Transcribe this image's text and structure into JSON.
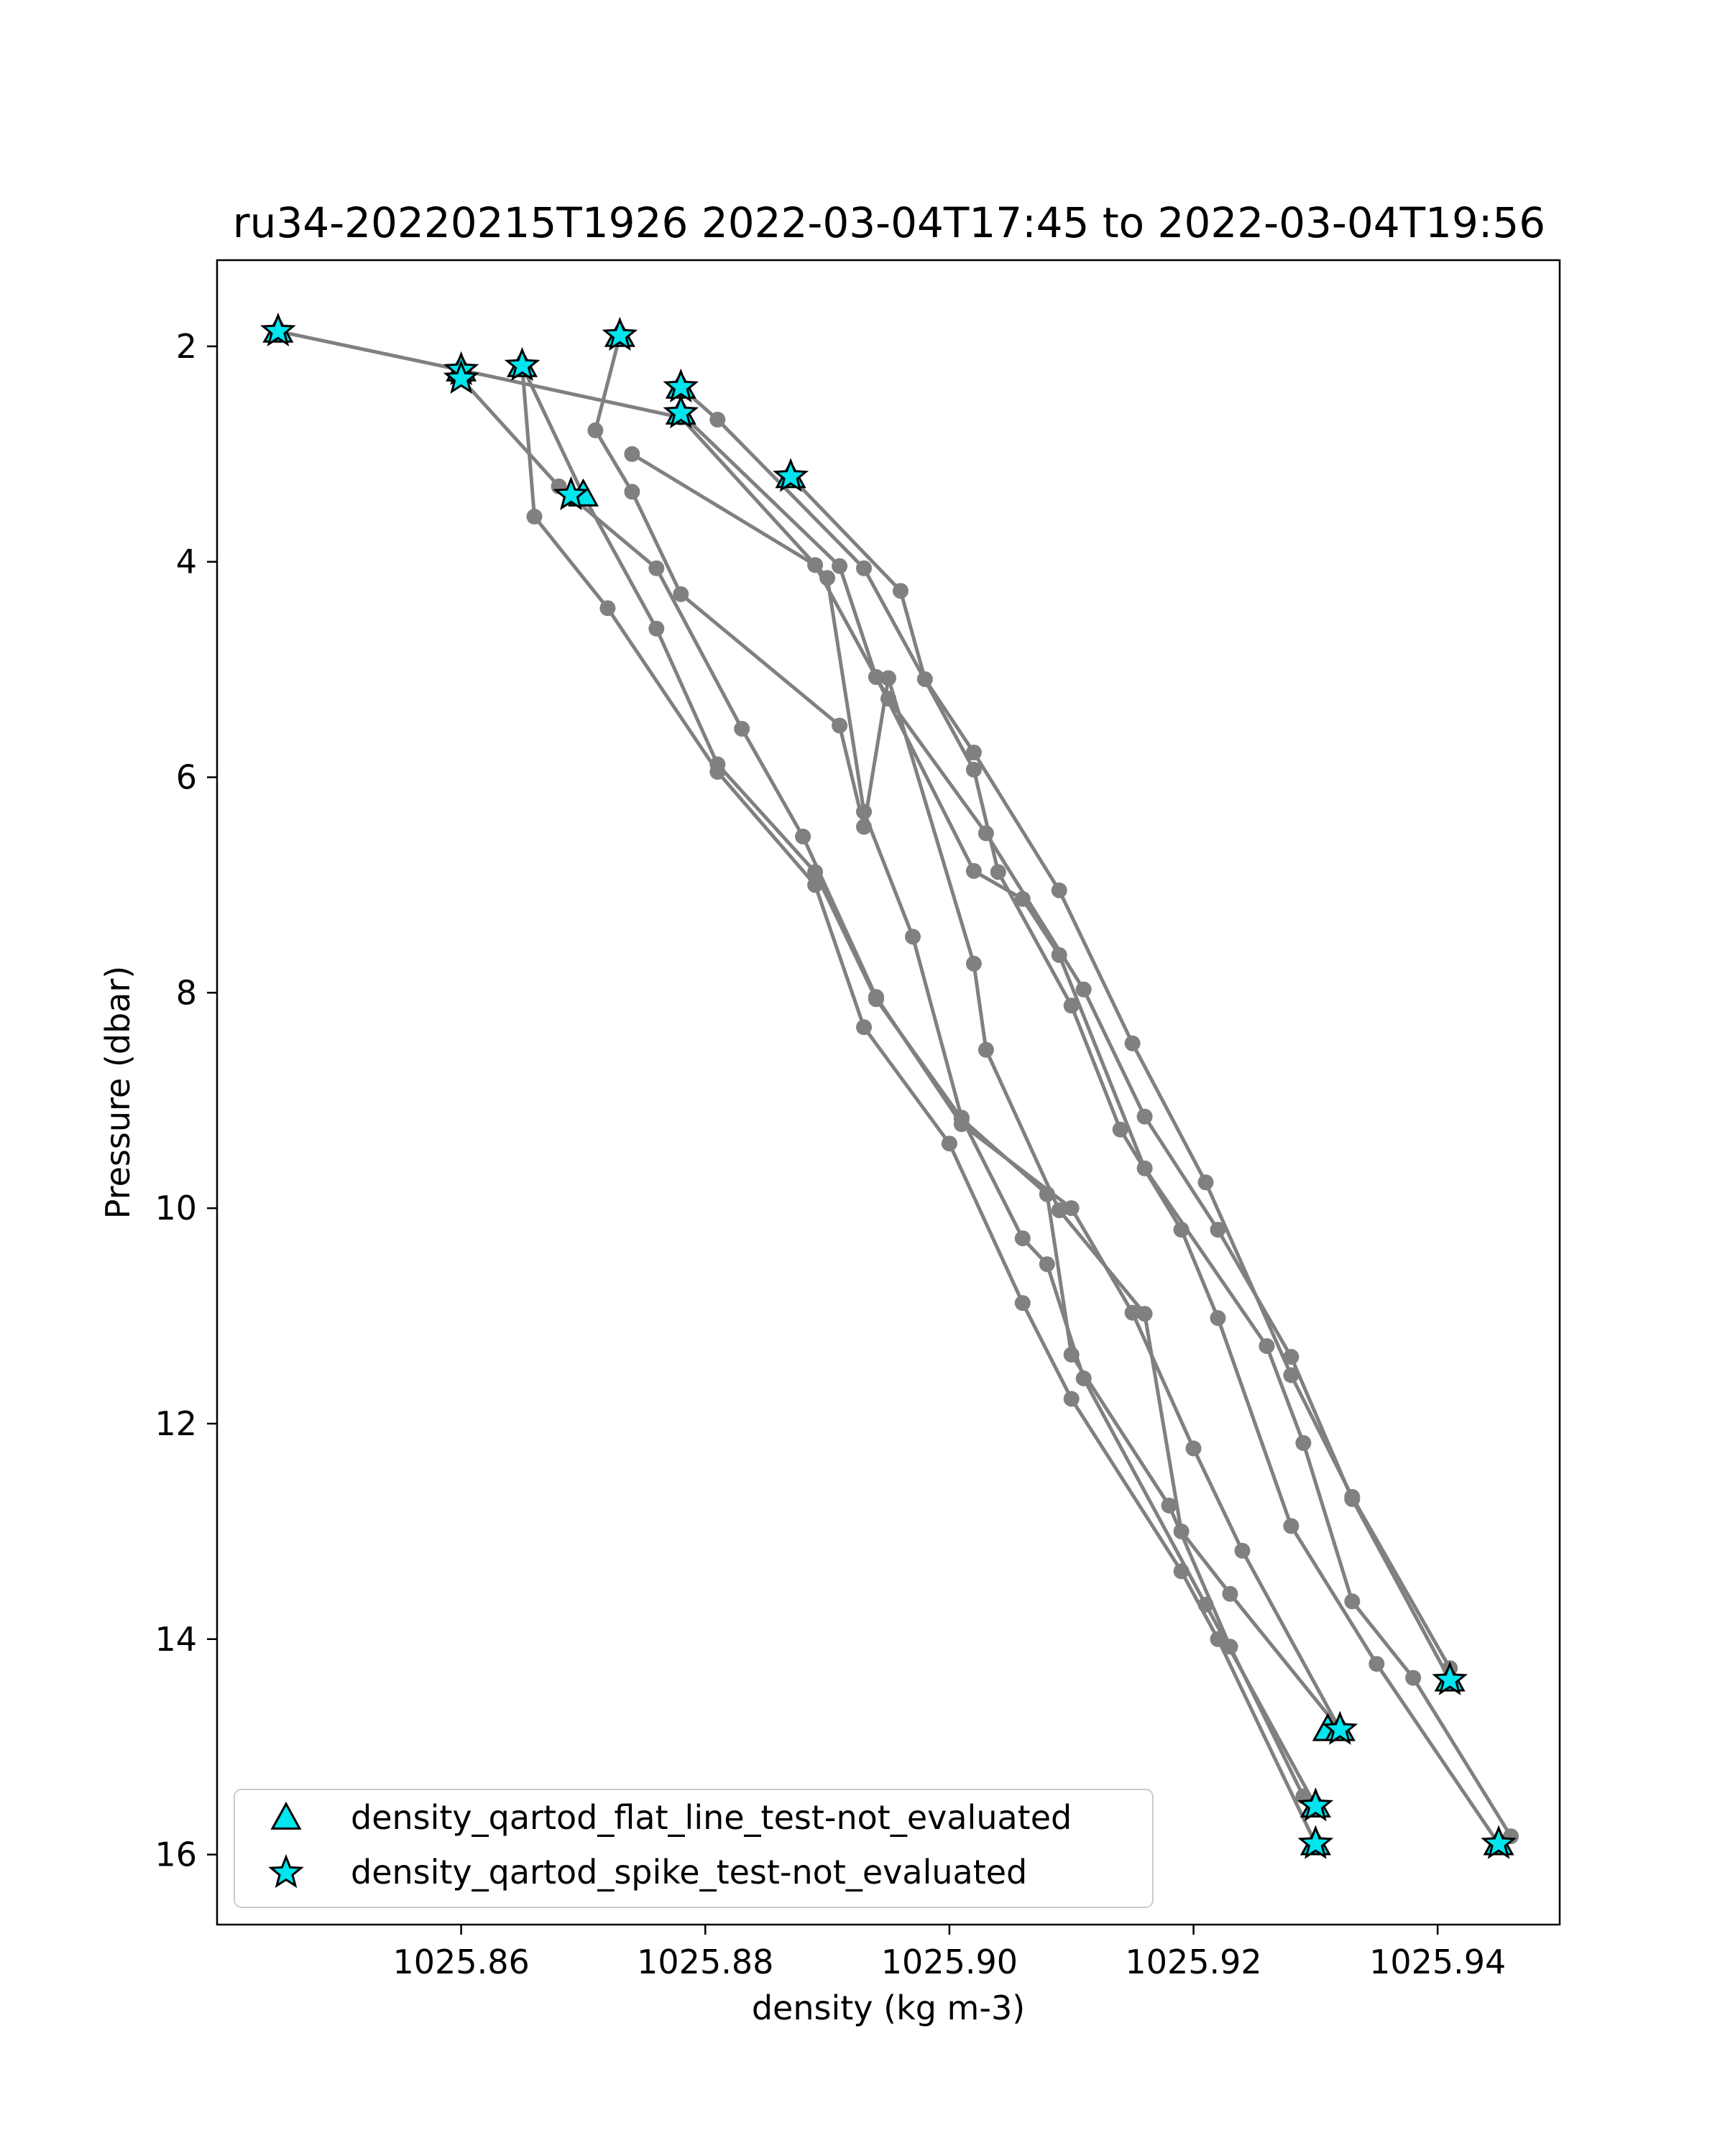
{
  "chart_data": {
    "type": "scatter",
    "title": "ru34-20220215T1926 2022-03-04T17:45 to 2022-03-04T19:56",
    "xlabel": "density (kg m-3)",
    "ylabel": "Pressure (dbar)",
    "xlim": [
      1025.84,
      1025.95
    ],
    "ylim": [
      16.65,
      1.2
    ],
    "y_inverted": true,
    "grid": false,
    "xticks": [
      1025.86,
      1025.88,
      1025.9,
      1025.92,
      1025.94
    ],
    "xtick_labels": [
      "1025.86",
      "1025.88",
      "1025.90",
      "1025.92",
      "1025.94"
    ],
    "yticks": [
      2,
      4,
      6,
      8,
      10,
      12,
      14,
      16
    ],
    "ytick_labels": [
      "2",
      "4",
      "6",
      "8",
      "10",
      "12",
      "14",
      "16"
    ],
    "line_color": "#808080",
    "marker_color": "#00e5ee",
    "legend_position": "lower-left",
    "legend": [
      {
        "label": "density_qartod_flat_line_test-not_evaluated",
        "marker": "triangle"
      },
      {
        "label": "density_qartod_spike_test-not_evaluated",
        "marker": "star"
      }
    ],
    "profiles": [
      {
        "points": [
          [
            1025.845,
            1.86
          ],
          [
            1025.86,
            2.22
          ],
          [
            1025.878,
            2.66
          ],
          [
            1025.89,
            4.15
          ],
          [
            1025.893,
            6.32
          ],
          [
            1025.897,
            7.48
          ],
          [
            1025.901,
            9.16
          ],
          [
            1025.906,
            10.28
          ],
          [
            1025.908,
            10.52
          ],
          [
            1025.911,
            11.58
          ],
          [
            1025.921,
            13.68
          ],
          [
            1025.93,
            15.55
          ]
        ]
      },
      {
        "points": [
          [
            1025.86,
            2.3
          ],
          [
            1025.868,
            3.3
          ],
          [
            1025.876,
            4.06
          ],
          [
            1025.883,
            5.55
          ],
          [
            1025.888,
            6.55
          ],
          [
            1025.894,
            8.04
          ],
          [
            1025.901,
            9.22
          ],
          [
            1025.91,
            10.0
          ],
          [
            1025.915,
            10.97
          ],
          [
            1025.92,
            12.23
          ],
          [
            1025.924,
            13.18
          ],
          [
            1025.932,
            14.84
          ]
        ]
      },
      {
        "points": [
          [
            1025.865,
            2.18
          ],
          [
            1025.866,
            3.58
          ],
          [
            1025.872,
            4.43
          ],
          [
            1025.881,
            5.95
          ],
          [
            1025.889,
            7.0
          ],
          [
            1025.893,
            8.32
          ],
          [
            1025.9,
            9.4
          ],
          [
            1025.906,
            10.88
          ],
          [
            1025.91,
            11.77
          ],
          [
            1025.919,
            13.37
          ],
          [
            1025.922,
            14.0
          ],
          [
            1025.93,
            15.9
          ]
        ]
      },
      {
        "points": [
          [
            1025.865,
            2.18
          ],
          [
            1025.87,
            3.38
          ],
          [
            1025.876,
            4.62
          ],
          [
            1025.881,
            5.88
          ],
          [
            1025.889,
            6.88
          ],
          [
            1025.894,
            8.06
          ],
          [
            1025.901,
            9.17
          ],
          [
            1025.908,
            9.87
          ],
          [
            1025.91,
            11.36
          ],
          [
            1025.918,
            12.76
          ],
          [
            1025.923,
            14.07
          ],
          [
            1025.929,
            15.46
          ]
        ]
      },
      {
        "points": [
          [
            1025.873,
            1.9
          ],
          [
            1025.871,
            2.78
          ],
          [
            1025.874,
            3.35
          ],
          [
            1025.878,
            4.3
          ],
          [
            1025.891,
            5.52
          ],
          [
            1025.893,
            6.46
          ],
          [
            1025.895,
            5.08
          ],
          [
            1025.902,
            7.73
          ],
          [
            1025.903,
            8.53
          ],
          [
            1025.909,
            10.02
          ],
          [
            1025.916,
            10.98
          ],
          [
            1025.919,
            13.0
          ],
          [
            1025.923,
            13.58
          ],
          [
            1025.932,
            14.84
          ]
        ]
      },
      {
        "points": [
          [
            1025.878,
            2.38
          ],
          [
            1025.881,
            2.68
          ],
          [
            1025.893,
            4.06
          ],
          [
            1025.902,
            5.93
          ],
          [
            1025.904,
            6.88
          ],
          [
            1025.91,
            8.12
          ],
          [
            1025.914,
            9.27
          ],
          [
            1025.919,
            10.2
          ],
          [
            1025.922,
            11.02
          ],
          [
            1025.928,
            12.95
          ],
          [
            1025.935,
            14.23
          ],
          [
            1025.945,
            15.9
          ]
        ]
      },
      {
        "points": [
          [
            1025.874,
            3.0
          ],
          [
            1025.889,
            4.03
          ],
          [
            1025.894,
            5.07
          ],
          [
            1025.902,
            6.87
          ],
          [
            1025.906,
            7.13
          ],
          [
            1025.909,
            7.65
          ],
          [
            1025.916,
            9.63
          ],
          [
            1025.926,
            11.28
          ],
          [
            1025.929,
            12.18
          ],
          [
            1025.933,
            13.65
          ],
          [
            1025.938,
            14.36
          ],
          [
            1025.946,
            15.83
          ]
        ]
      },
      {
        "points": [
          [
            1025.887,
            3.21
          ],
          [
            1025.896,
            4.27
          ],
          [
            1025.898,
            5.09
          ],
          [
            1025.902,
            5.77
          ],
          [
            1025.909,
            7.05
          ],
          [
            1025.915,
            8.47
          ],
          [
            1025.921,
            9.76
          ],
          [
            1025.928,
            11.55
          ],
          [
            1025.933,
            12.68
          ],
          [
            1025.941,
            14.27
          ]
        ]
      },
      {
        "points": [
          [
            1025.878,
            2.62
          ],
          [
            1025.891,
            4.04
          ],
          [
            1025.894,
            5.07
          ],
          [
            1025.895,
            5.27
          ],
          [
            1025.903,
            6.52
          ],
          [
            1025.911,
            7.97
          ],
          [
            1025.916,
            9.15
          ],
          [
            1025.922,
            10.2
          ],
          [
            1025.928,
            11.38
          ],
          [
            1025.933,
            12.7
          ],
          [
            1025.941,
            14.38
          ]
        ]
      }
    ],
    "triangle_points": [
      [
        1025.845,
        1.86
      ],
      [
        1025.86,
        2.22
      ],
      [
        1025.865,
        2.18
      ],
      [
        1025.873,
        1.9
      ],
      [
        1025.878,
        2.38
      ],
      [
        1025.887,
        3.21
      ],
      [
        1025.878,
        2.62
      ],
      [
        1025.87,
        3.38
      ],
      [
        1025.931,
        14.84
      ],
      [
        1025.93,
        15.55
      ],
      [
        1025.941,
        14.38
      ],
      [
        1025.945,
        15.9
      ],
      [
        1025.932,
        14.84
      ],
      [
        1025.93,
        15.9
      ]
    ],
    "star_points": [
      [
        1025.845,
        1.86
      ],
      [
        1025.86,
        2.22
      ],
      [
        1025.86,
        2.3
      ],
      [
        1025.865,
        2.18
      ],
      [
        1025.873,
        1.9
      ],
      [
        1025.878,
        2.38
      ],
      [
        1025.878,
        2.62
      ],
      [
        1025.887,
        3.21
      ],
      [
        1025.869,
        3.38
      ],
      [
        1025.932,
        14.84
      ],
      [
        1025.93,
        15.55
      ],
      [
        1025.93,
        15.9
      ],
      [
        1025.941,
        14.38
      ],
      [
        1025.945,
        15.9
      ]
    ]
  }
}
